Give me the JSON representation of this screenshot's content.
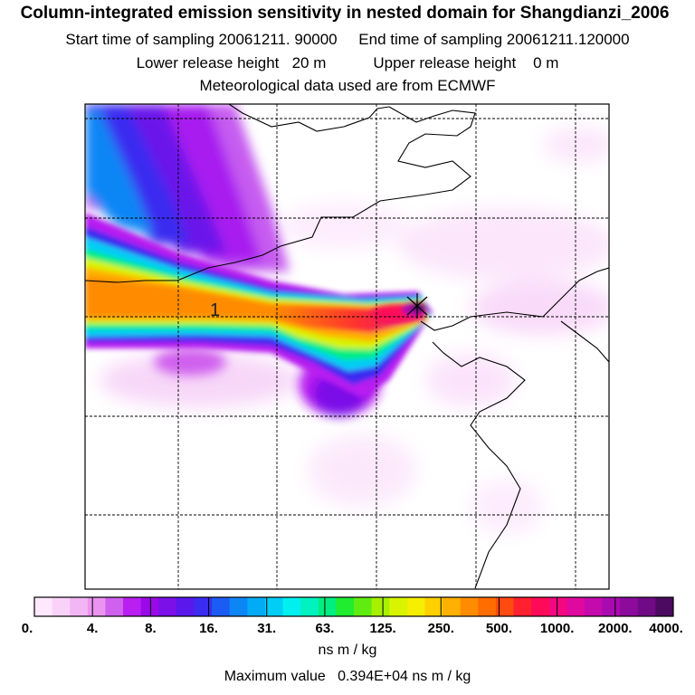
{
  "title": {
    "main": "Column-integrated emission sensitivity in nested domain for Shangdianzi_2006",
    "start_label": "Start time of sampling",
    "start_value": "20061211. 90000",
    "end_label": "End time of sampling",
    "end_value": "20061211.120000",
    "lower_label": "Lower release height",
    "lower_value": "20 m",
    "upper_label": "Upper release height",
    "upper_value": "0 m",
    "met_line": "Meteorological data used are from ECMWF"
  },
  "map": {
    "release_marker_label": "1",
    "colors": {
      "border": "#000000",
      "grid": "#000000",
      "background": "#ffffff"
    }
  },
  "colorbar": {
    "ticks": [
      "0.",
      "4.",
      "8.",
      "16.",
      "31.",
      "63.",
      "125.",
      "250.",
      "500.",
      "1000.",
      "2000.",
      "4000."
    ],
    "colors": [
      "#fde8fd",
      "#f9d2f9",
      "#f3b6f5",
      "#ea94f0",
      "#d060ee",
      "#b81ff0",
      "#9a0ae8",
      "#7b10e8",
      "#5a18ec",
      "#3a2cf0",
      "#1b5cf4",
      "#0c86f5",
      "#03aaf6",
      "#00cef6",
      "#00f0f0",
      "#00f2c0",
      "#00ee80",
      "#20ec30",
      "#60ec10",
      "#a6f000",
      "#d8f400",
      "#f6ee00",
      "#ffd000",
      "#ffb000",
      "#ff8c00",
      "#ff6c00",
      "#ff4a10",
      "#ff2030",
      "#ff0a58",
      "#f40880",
      "#e009a0",
      "#c40aac",
      "#a80ab0",
      "#8c0a9c",
      "#700a86",
      "#4c0a60"
    ]
  },
  "units": "ns m / kg",
  "maximum": {
    "label": "Maximum value",
    "value": "0.394E+04",
    "unit": "ns m / kg"
  }
}
